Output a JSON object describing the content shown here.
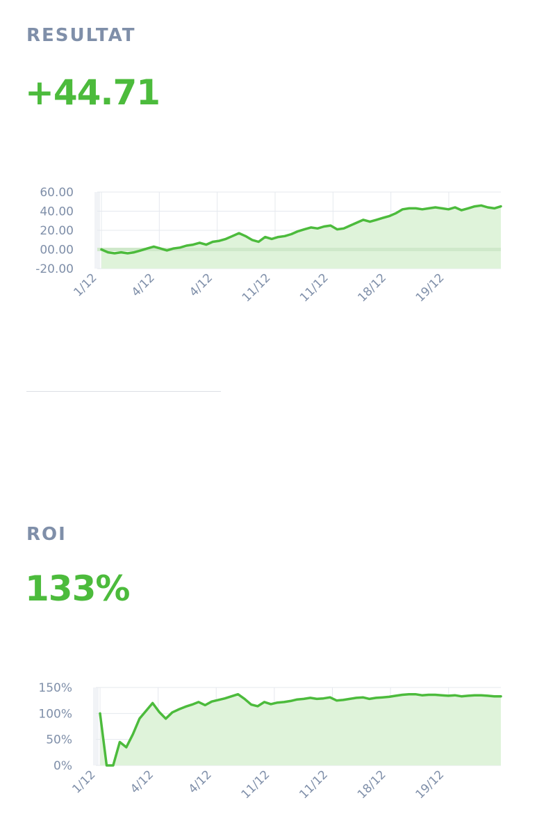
{
  "result": {
    "label": "RESULTAT",
    "value": "+44.71"
  },
  "roi": {
    "label": "ROI",
    "value": "133%"
  },
  "colors": {
    "accent_green": "#4cbb3c",
    "area_fill": "#dff3da",
    "label_gray": "#7f8fa9",
    "grid": "#e5e8ee"
  },
  "chart_data": [
    {
      "type": "area",
      "name": "result-chart",
      "yticks": [
        "60.00",
        "40.00",
        "20.00",
        "00.00",
        "-20.00"
      ],
      "ytick_values": [
        60,
        40,
        20,
        0,
        -20
      ],
      "xticks": [
        "1/12",
        "4/12",
        "4/12",
        "11/12",
        "11/12",
        "18/12",
        "19/12"
      ],
      "ylim": [
        -20,
        60
      ],
      "grid": true,
      "values": [
        0,
        -3,
        -4,
        -3,
        -4,
        -3,
        -1,
        1,
        3,
        1,
        -1,
        1,
        2,
        4,
        5,
        7,
        5,
        8,
        9,
        11,
        14,
        17,
        14,
        10,
        8,
        13,
        11,
        13,
        14,
        16,
        19,
        21,
        23,
        22,
        24,
        25,
        21,
        22,
        25,
        28,
        31,
        29,
        31,
        33,
        35,
        38,
        42,
        43,
        43,
        42,
        43,
        44,
        43,
        42,
        44,
        41,
        43,
        45,
        46,
        44,
        43,
        45
      ]
    },
    {
      "type": "area",
      "name": "roi-chart",
      "yticks": [
        "150%",
        "100%",
        "50%",
        "0%"
      ],
      "ytick_values": [
        150,
        100,
        50,
        0
      ],
      "xticks": [
        "1/12",
        "4/12",
        "4/12",
        "11/12",
        "11/12",
        "18/12",
        "19/12"
      ],
      "ylim": [
        0,
        150
      ],
      "grid": true,
      "values": [
        100,
        0,
        0,
        45,
        35,
        60,
        90,
        105,
        120,
        103,
        90,
        102,
        108,
        113,
        117,
        122,
        116,
        123,
        126,
        129,
        133,
        137,
        128,
        117,
        114,
        122,
        118,
        121,
        122,
        124,
        127,
        128,
        130,
        128,
        129,
        131,
        125,
        126,
        128,
        130,
        131,
        128,
        130,
        131,
        132,
        134,
        136,
        137,
        137,
        135,
        136,
        136,
        135,
        134,
        135,
        133,
        134,
        135,
        135,
        134,
        133,
        133
      ]
    }
  ]
}
